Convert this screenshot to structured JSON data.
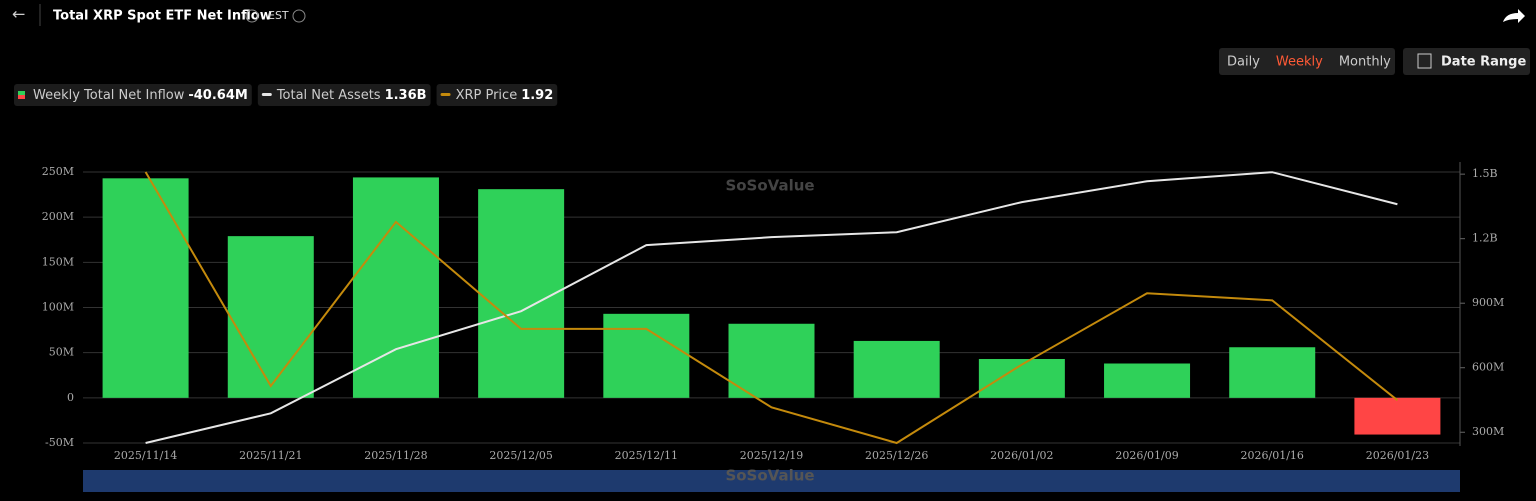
{
  "ui": {
    "back": "←",
    "timezone": "EST",
    "periods": [
      "Daily",
      "Weekly",
      "Monthly"
    ],
    "active_period": 1,
    "date_range": "Date Range",
    "watermark": "SoSoValue"
  },
  "chart_data": {
    "type": "bar",
    "title": "Total XRP Spot ETF Net Inflow",
    "categories": [
      "2025/11/14",
      "2025/11/21",
      "2025/11/28",
      "2025/12/05",
      "2025/12/11",
      "2025/12/19",
      "2025/12/26",
      "2026/01/02",
      "2026/01/09",
      "2026/01/16",
      "2026/01/23"
    ],
    "series": [
      {
        "name": "Weekly Total Net Inflow",
        "latest_label": "-40.64M",
        "type": "bar",
        "color": "#2fd159",
        "negative_color": "#ff4545",
        "values": [
          243,
          179,
          244,
          231,
          93,
          82,
          63,
          43,
          38,
          56,
          -40.64
        ]
      },
      {
        "name": "Total Net Assets",
        "latest_label": "1.36B",
        "type": "line",
        "axis": "y2",
        "color": "#e6e6e6",
        "values": [
          250,
          388,
          686,
          863,
          1170,
          1207,
          1230,
          1370,
          1467,
          1509,
          1360
        ]
      },
      {
        "name": "XRP Price",
        "latest_label": "1.92",
        "type": "line",
        "axis": "y3",
        "color": "#c48a0c",
        "values": [
          2.24,
          1.94,
          2.17,
          2.02,
          2.02,
          1.91,
          1.86,
          1.97,
          2.07,
          2.06,
          1.92
        ]
      }
    ],
    "ylim": [
      -50,
      250
    ],
    "yticks": [
      {
        "value": -50,
        "label": "-50M"
      },
      0,
      {
        "value": 50,
        "label": "50M"
      },
      {
        "value": 100,
        "label": "100M"
      },
      {
        "value": 150,
        "label": "150M"
      },
      {
        "value": 200,
        "label": "200M"
      },
      {
        "value": 250,
        "label": "250M"
      }
    ],
    "y2lim": [
      250,
      1510
    ],
    "y2ticks": [
      {
        "value": 300,
        "label": "300M"
      },
      {
        "value": 600,
        "label": "600M"
      },
      {
        "value": 900,
        "label": "900M"
      },
      {
        "value": 1200,
        "label": "1.2B"
      },
      {
        "value": 1500,
        "label": "1.5B"
      }
    ],
    "y3lim": [
      1.86,
      2.24
    ],
    "grid": true
  }
}
